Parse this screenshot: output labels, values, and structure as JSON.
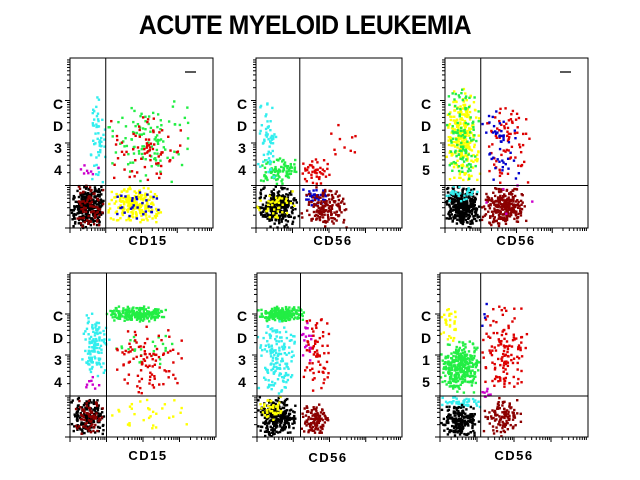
{
  "title": "ACUTE MYELOID LEUKEMIA",
  "colors": {
    "black": "#000000",
    "darkred": "#8b0000",
    "red": "#dd0000",
    "yellow": "#ffff00",
    "green": "#22ee44",
    "cyan": "#33eeee",
    "blue": "#0000cc",
    "magenta": "#cc00cc"
  },
  "chart_data": [
    {
      "type": "scatter",
      "xlabel": "CD15",
      "ylabel": "CD34",
      "xlim": [
        0,
        4
      ],
      "ylim": [
        0,
        4
      ],
      "scale": "log-decades",
      "quadrant": [
        1,
        1
      ],
      "marker_bar": true,
      "clusters": [
        {
          "color": "black",
          "x": [
            0,
            1
          ],
          "y": [
            0,
            1
          ],
          "n": 320
        },
        {
          "color": "darkred",
          "x": [
            0.1,
            1
          ],
          "y": [
            0,
            1
          ],
          "n": 80
        },
        {
          "color": "yellow",
          "x": [
            1,
            2.6
          ],
          "y": [
            0.05,
            1
          ],
          "n": 220
        },
        {
          "color": "blue",
          "x": [
            1,
            2.8
          ],
          "y": [
            0.2,
            1
          ],
          "n": 30
        },
        {
          "color": "green",
          "x": [
            1,
            3.4
          ],
          "y": [
            1,
            3.1
          ],
          "n": 110
        },
        {
          "color": "red",
          "x": [
            1,
            3.3
          ],
          "y": [
            1,
            2.8
          ],
          "n": 70
        },
        {
          "color": "cyan",
          "x": [
            0.5,
            1
          ],
          "y": [
            1,
            3.2
          ],
          "n": 55
        },
        {
          "color": "magenta",
          "x": [
            0.2,
            1
          ],
          "y": [
            1,
            1.6
          ],
          "n": 8
        }
      ]
    },
    {
      "type": "scatter",
      "xlabel": "CD56",
      "ylabel": "CD34",
      "xlim": [
        0,
        4
      ],
      "ylim": [
        0,
        4
      ],
      "scale": "log-decades",
      "quadrant": [
        1.2,
        1
      ],
      "marker_bar": false,
      "clusters": [
        {
          "color": "black",
          "x": [
            0,
            1.2
          ],
          "y": [
            0,
            1
          ],
          "n": 300
        },
        {
          "color": "yellow",
          "x": [
            0,
            1.1
          ],
          "y": [
            0.1,
            1
          ],
          "n": 40
        },
        {
          "color": "green",
          "x": [
            0,
            1.2
          ],
          "y": [
            1,
            1.7
          ],
          "n": 90
        },
        {
          "color": "cyan",
          "x": [
            0,
            0.6
          ],
          "y": [
            1,
            3.2
          ],
          "n": 60
        },
        {
          "color": "red",
          "x": [
            1.2,
            2.1
          ],
          "y": [
            1,
            1.7
          ],
          "n": 45
        },
        {
          "color": "blue",
          "x": [
            1.2,
            2
          ],
          "y": [
            0.5,
            1
          ],
          "n": 40
        },
        {
          "color": "darkred",
          "x": [
            1.2,
            2.6
          ],
          "y": [
            0,
            1
          ],
          "n": 160
        },
        {
          "color": "red",
          "x": [
            1.5,
            3
          ],
          "y": [
            1.5,
            2.6
          ],
          "n": 10
        }
      ]
    },
    {
      "type": "scatter",
      "xlabel": "CD56",
      "ylabel": "CD15",
      "xlim": [
        0,
        4
      ],
      "ylim": [
        0,
        4
      ],
      "scale": "log-decades",
      "quadrant": [
        1,
        1
      ],
      "marker_bar": true,
      "clusters": [
        {
          "color": "yellow",
          "x": [
            0,
            1
          ],
          "y": [
            1,
            3.3
          ],
          "n": 260
        },
        {
          "color": "green",
          "x": [
            0,
            1
          ],
          "y": [
            1,
            3.4
          ],
          "n": 110
        },
        {
          "color": "black",
          "x": [
            0,
            1
          ],
          "y": [
            0,
            1
          ],
          "n": 360
        },
        {
          "color": "cyan",
          "x": [
            0,
            1
          ],
          "y": [
            0.6,
            1
          ],
          "n": 30
        },
        {
          "color": "darkred",
          "x": [
            1,
            2.3
          ],
          "y": [
            0,
            1
          ],
          "n": 260
        },
        {
          "color": "red",
          "x": [
            1,
            2.5
          ],
          "y": [
            1,
            3.2
          ],
          "n": 75
        },
        {
          "color": "blue",
          "x": [
            1,
            2.2
          ],
          "y": [
            1,
            3
          ],
          "n": 45
        },
        {
          "color": "magenta",
          "x": [
            1,
            2.8
          ],
          "y": [
            0.3,
            1.1
          ],
          "n": 5
        }
      ]
    },
    {
      "type": "scatter",
      "xlabel": "CD15",
      "ylabel": "CD34",
      "xlim": [
        0,
        4
      ],
      "ylim": [
        0,
        4
      ],
      "scale": "log-decades",
      "quadrant": [
        1,
        1
      ],
      "marker_bar": false,
      "clusters": [
        {
          "color": "green",
          "x": [
            1,
            2.7
          ],
          "y": [
            2.8,
            3.2
          ],
          "n": 220
        },
        {
          "color": "green",
          "x": [
            1,
            3
          ],
          "y": [
            1.5,
            2.8
          ],
          "n": 25
        },
        {
          "color": "cyan",
          "x": [
            0.3,
            1.1
          ],
          "y": [
            1.4,
            3.1
          ],
          "n": 130
        },
        {
          "color": "red",
          "x": [
            1,
            3.1
          ],
          "y": [
            1,
            2.8
          ],
          "n": 95
        },
        {
          "color": "black",
          "x": [
            0,
            1
          ],
          "y": [
            0,
            1
          ],
          "n": 180
        },
        {
          "color": "darkred",
          "x": [
            0.1,
            1
          ],
          "y": [
            0,
            1
          ],
          "n": 70
        },
        {
          "color": "yellow",
          "x": [
            1,
            3.2
          ],
          "y": [
            0.1,
            1
          ],
          "n": 30
        },
        {
          "color": "magenta",
          "x": [
            0.3,
            1
          ],
          "y": [
            1,
            1.6
          ],
          "n": 8
        }
      ]
    },
    {
      "type": "scatter",
      "xlabel": "CD56",
      "ylabel": "CD34",
      "xlim": [
        0,
        4
      ],
      "ylim": [
        0,
        4
      ],
      "scale": "log-decades",
      "quadrant": [
        1.2,
        1
      ],
      "marker_bar": false,
      "clusters": [
        {
          "color": "green",
          "x": [
            0,
            1.3
          ],
          "y": [
            2.8,
            3.2
          ],
          "n": 220
        },
        {
          "color": "cyan",
          "x": [
            0,
            1.1
          ],
          "y": [
            1,
            2.9
          ],
          "n": 160
        },
        {
          "color": "magenta",
          "x": [
            1.2,
            1.6
          ],
          "y": [
            1.5,
            3.1
          ],
          "n": 20
        },
        {
          "color": "red",
          "x": [
            1.2,
            2.1
          ],
          "y": [
            1,
            3
          ],
          "n": 65
        },
        {
          "color": "black",
          "x": [
            0,
            1.1
          ],
          "y": [
            0,
            1
          ],
          "n": 300
        },
        {
          "color": "yellow",
          "x": [
            0,
            0.8
          ],
          "y": [
            0.4,
            1
          ],
          "n": 45
        },
        {
          "color": "darkred",
          "x": [
            1.2,
            2
          ],
          "y": [
            0,
            0.9
          ],
          "n": 110
        }
      ]
    },
    {
      "type": "scatter",
      "xlabel": "CD56",
      "ylabel": "CD15",
      "xlim": [
        0,
        4
      ],
      "ylim": [
        0,
        4
      ],
      "scale": "log-decades",
      "quadrant": [
        1.1,
        1
      ],
      "marker_bar": false,
      "clusters": [
        {
          "color": "yellow",
          "x": [
            0,
            0.5
          ],
          "y": [
            2.3,
            3.3
          ],
          "n": 30
        },
        {
          "color": "green",
          "x": [
            0,
            1.1
          ],
          "y": [
            1,
            2.4
          ],
          "n": 320
        },
        {
          "color": "cyan",
          "x": [
            0,
            1.1
          ],
          "y": [
            0.7,
            1
          ],
          "n": 45
        },
        {
          "color": "black",
          "x": [
            0,
            1.1
          ],
          "y": [
            0,
            0.8
          ],
          "n": 200
        },
        {
          "color": "red",
          "x": [
            1.1,
            2.4
          ],
          "y": [
            1,
            3.3
          ],
          "n": 130
        },
        {
          "color": "darkred",
          "x": [
            1.1,
            2.3
          ],
          "y": [
            0,
            1
          ],
          "n": 110
        },
        {
          "color": "magenta",
          "x": [
            1.1,
            1.4
          ],
          "y": [
            0.8,
            1.2
          ],
          "n": 10
        },
        {
          "color": "blue",
          "x": [
            1.1,
            1.3
          ],
          "y": [
            2.5,
            3.3
          ],
          "n": 4
        }
      ]
    }
  ]
}
